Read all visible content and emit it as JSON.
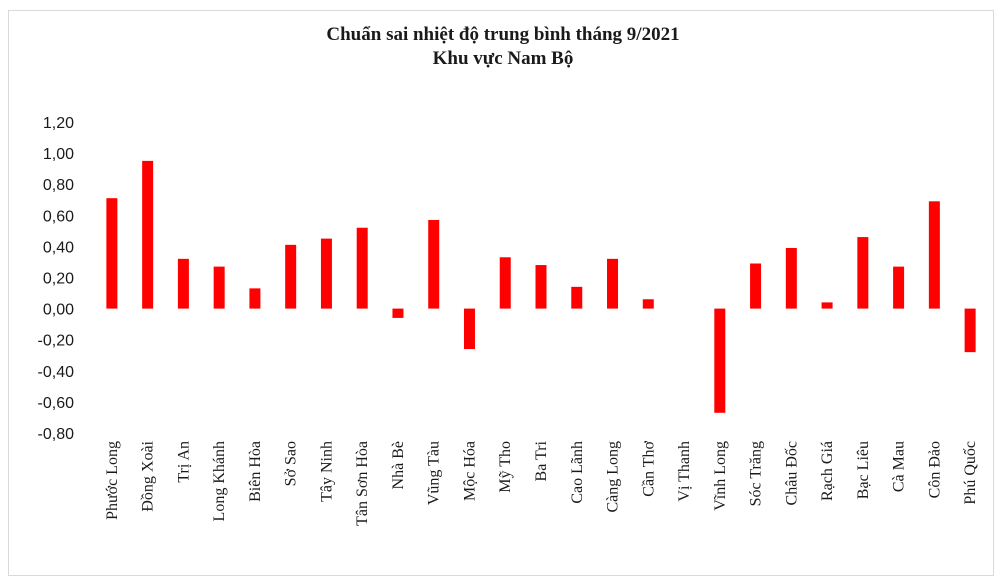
{
  "chart_data": {
    "type": "bar",
    "title": "Chuẩn sai nhiệt độ trung bình tháng 9/2021",
    "subtitle": "Khu vực Nam Bộ",
    "xlabel": "",
    "ylabel": "",
    "ylim": [
      -0.8,
      1.2
    ],
    "yticks": [
      "-0,80",
      "-0,60",
      "-0,40",
      "-0,20",
      "0,00",
      "0,20",
      "0,40",
      "0,60",
      "0,80",
      "1,00",
      "1,20"
    ],
    "ytick_values": [
      -0.8,
      -0.6,
      -0.4,
      -0.2,
      0.0,
      0.2,
      0.4,
      0.6,
      0.8,
      1.0,
      1.2
    ],
    "grid": false,
    "legend": "none",
    "bar_color": "#ff0000",
    "categories": [
      "Phước Long",
      "Đồng Xoài",
      "Trị An",
      "Long Khánh",
      "Biên Hòa",
      "Sở Sao",
      "Tây Ninh",
      "Tân Sơn Hòa",
      "Nhà Bè",
      "Vũng Tàu",
      "Mộc Hóa",
      "Mỹ Tho",
      "Ba Tri",
      "Cao Lãnh",
      "Càng Long",
      "Cần Thơ",
      "Vị Thanh",
      "Vĩnh Long",
      "Sóc Trăng",
      "Châu Đốc",
      "Rạch Giá",
      "Bạc Liêu",
      "Cà Mau",
      "Côn Đảo",
      "Phú Quốc"
    ],
    "values": [
      0.71,
      0.95,
      0.32,
      0.27,
      0.13,
      0.41,
      0.45,
      0.52,
      -0.06,
      0.57,
      -0.26,
      0.33,
      0.28,
      0.14,
      0.32,
      0.06,
      0.0,
      -0.67,
      0.29,
      0.39,
      0.04,
      0.46,
      0.27,
      0.69,
      -0.28
    ]
  }
}
